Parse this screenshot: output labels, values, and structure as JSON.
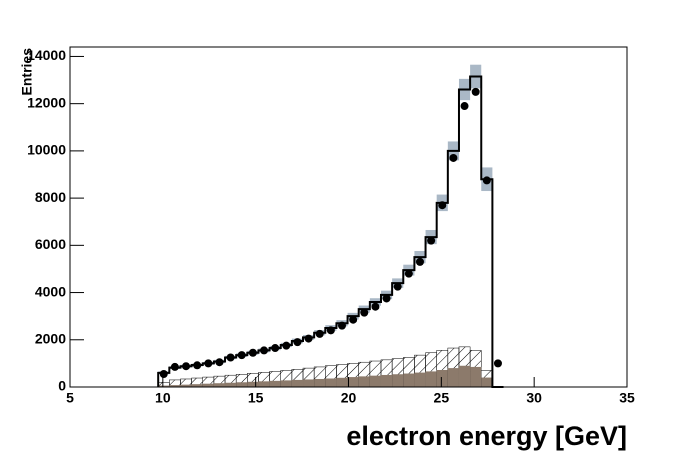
{
  "chart_data": {
    "type": "histogram",
    "x_label": "electron energy [GeV]",
    "y_label": "Entries",
    "bins": [
      9.75,
      10.35,
      10.95,
      11.55,
      12.15,
      12.75,
      13.35,
      13.95,
      14.55,
      15.15,
      15.75,
      16.35,
      16.95,
      17.55,
      18.15,
      18.75,
      19.35,
      19.95,
      20.55,
      21.15,
      21.75,
      22.35,
      22.95,
      23.55,
      24.15,
      24.75,
      25.35,
      25.95,
      26.55,
      27.15,
      27.75,
      28.35
    ],
    "xlim": [
      5,
      35
    ],
    "xticks": [
      5,
      10,
      15,
      20,
      25,
      30,
      35
    ],
    "ylim": [
      0,
      14400
    ],
    "yticks": [
      0,
      2000,
      4000,
      6000,
      8000,
      10000,
      12000,
      14000
    ],
    "series": [
      {
        "style": "band",
        "color": "#aab8c6",
        "values": [
          600,
          820,
          880,
          930,
          1000,
          1080,
          1250,
          1350,
          1450,
          1550,
          1650,
          1780,
          1950,
          2100,
          2300,
          2500,
          2700,
          3000,
          3300,
          3600,
          3900,
          4400,
          4950,
          5500,
          6350,
          7800,
          10000,
          12600,
          13150,
          8800,
          0
        ],
        "errors": [
          60,
          60,
          60,
          60,
          60,
          70,
          70,
          80,
          80,
          80,
          90,
          90,
          100,
          100,
          110,
          120,
          130,
          140,
          150,
          160,
          180,
          200,
          230,
          260,
          300,
          350,
          400,
          450,
          500,
          500,
          0
        ]
      },
      {
        "style": "hatch",
        "color": "#000000",
        "values": [
          200,
          300,
          340,
          380,
          420,
          460,
          500,
          540,
          580,
          620,
          660,
          700,
          750,
          800,
          850,
          900,
          950,
          1000,
          1050,
          1100,
          1150,
          1200,
          1250,
          1350,
          1450,
          1550,
          1650,
          1700,
          1550,
          700,
          0
        ]
      },
      {
        "style": "fill",
        "color": "#8c7a6b",
        "values": [
          60,
          80,
          100,
          120,
          140,
          160,
          180,
          200,
          220,
          240,
          260,
          280,
          300,
          320,
          340,
          360,
          390,
          420,
          450,
          480,
          510,
          540,
          570,
          610,
          660,
          720,
          800,
          900,
          850,
          400,
          0
        ]
      },
      {
        "style": "step",
        "color": "#000000",
        "values": [
          600,
          820,
          880,
          930,
          1000,
          1080,
          1250,
          1350,
          1450,
          1550,
          1650,
          1780,
          1950,
          2100,
          2300,
          2500,
          2700,
          3000,
          3300,
          3600,
          3900,
          4400,
          4950,
          5500,
          6350,
          7800,
          10000,
          12600,
          13150,
          8800,
          0
        ]
      },
      {
        "style": "points",
        "color": "#000000",
        "values": [
          550,
          850,
          880,
          920,
          1000,
          1050,
          1250,
          1350,
          1450,
          1550,
          1650,
          1750,
          1900,
          2050,
          2250,
          2400,
          2600,
          2850,
          3150,
          3400,
          3750,
          4250,
          4800,
          5300,
          6200,
          7700,
          9700,
          11900,
          12500,
          8750,
          1000
        ]
      }
    ]
  }
}
